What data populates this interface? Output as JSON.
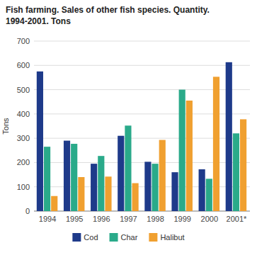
{
  "chart_data": {
    "type": "bar",
    "title": "Fish farming. Sales of other fish species. Quantity.",
    "subtitle": "1994-2001. Tons",
    "ylabel": "Tons",
    "categories": [
      "1994",
      "1995",
      "1996",
      "1997",
      "1998",
      "1999",
      "2000",
      "2001*"
    ],
    "series": [
      {
        "name": "Cod",
        "color": "#1e3a8a",
        "values": [
          575,
          290,
          195,
          310,
          203,
          160,
          172,
          613
        ]
      },
      {
        "name": "Char",
        "color": "#2aaa8a",
        "values": [
          265,
          277,
          227,
          352,
          195,
          500,
          133,
          320
        ]
      },
      {
        "name": "Halibut",
        "color": "#f0a030",
        "values": [
          62,
          140,
          142,
          115,
          293,
          455,
          553,
          378
        ]
      }
    ],
    "ylim": [
      0,
      700
    ],
    "yticks": [
      0,
      100,
      200,
      300,
      400,
      500,
      600,
      700
    ],
    "grid": true,
    "legend": "bottom"
  }
}
